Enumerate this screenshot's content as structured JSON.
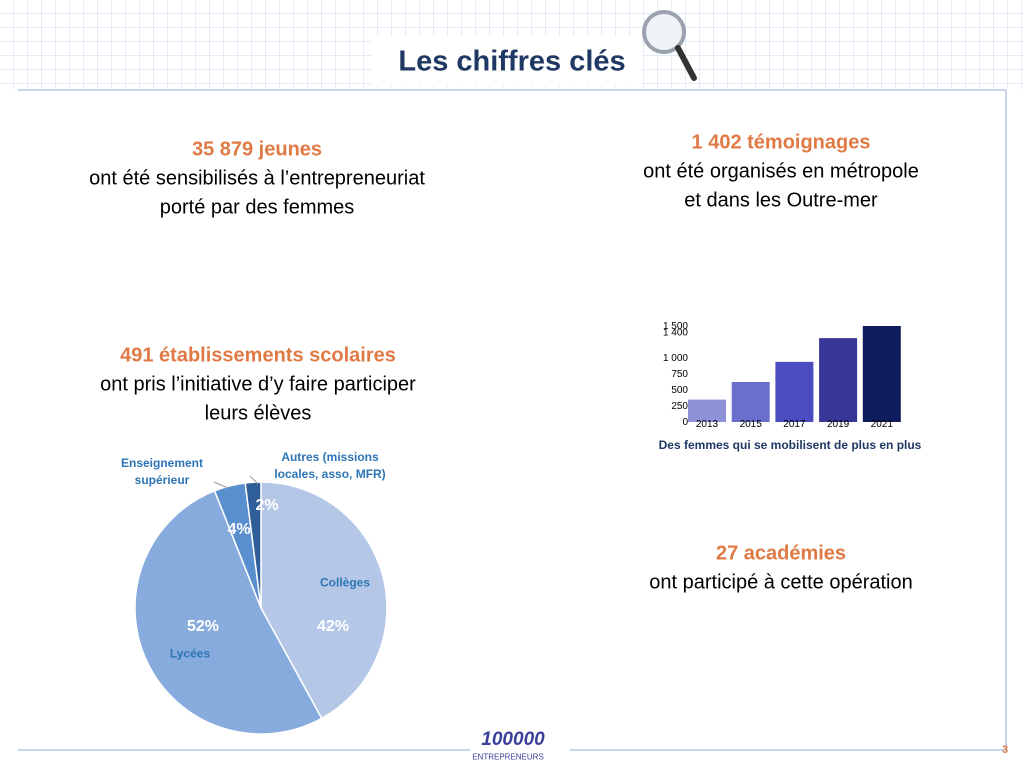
{
  "title": "Les chiffres clés",
  "blocks": [
    {
      "highlight": "35 879  jeunes",
      "lines": [
        "ont été sensibilisés à l’entrepreneuriat",
        "porté par des femmes"
      ]
    },
    {
      "highlight": "1 402   témoignages",
      "lines": [
        "ont été organisés en métropole",
        "et dans les Outre-mer"
      ]
    },
    {
      "highlight": "491 établissements scolaires",
      "lines": [
        "ont pris l’initiative d’y faire participer",
        "leurs élèves"
      ]
    },
    {
      "highlight": "27 académies",
      "lines": [
        "ont participé à cette opération"
      ]
    }
  ],
  "chart_data": [
    {
      "type": "bar",
      "title": "Des femmes qui se mobilisent de plus en plus",
      "categories": [
        "2013",
        "2015",
        "2017",
        "2019",
        "2021"
      ],
      "values": [
        350,
        625,
        940,
        1310,
        1500
      ],
      "colors": [
        "#8e90d8",
        "#6a6fce",
        "#4a4cc0",
        "#363796",
        "#0f1d5e"
      ],
      "ylim": [
        0,
        1500
      ],
      "yticks": [
        0,
        250,
        500,
        750,
        {
          "value": 1000,
          "label": "1 000"
        },
        {
          "value": 1400,
          "label": "1 400"
        },
        {
          "value": 1500,
          "label": "1 500"
        }
      ]
    },
    {
      "type": "pie",
      "categories": [
        "Collèges",
        "Lycées",
        "Enseignement supérieur",
        "Autres (missions locales, asso, MFR)"
      ],
      "values": [
        42,
        52,
        4,
        2
      ],
      "value_labels": [
        "42%",
        "52%",
        "4%",
        "2%"
      ],
      "colors": [
        "#b4c7e7",
        "#86abdc",
        "#5a8fcf",
        "#2f5f9a"
      ]
    }
  ],
  "footer": {
    "logo": "100000",
    "logo_sub": "ENTREPRENEURS",
    "page": "3"
  }
}
